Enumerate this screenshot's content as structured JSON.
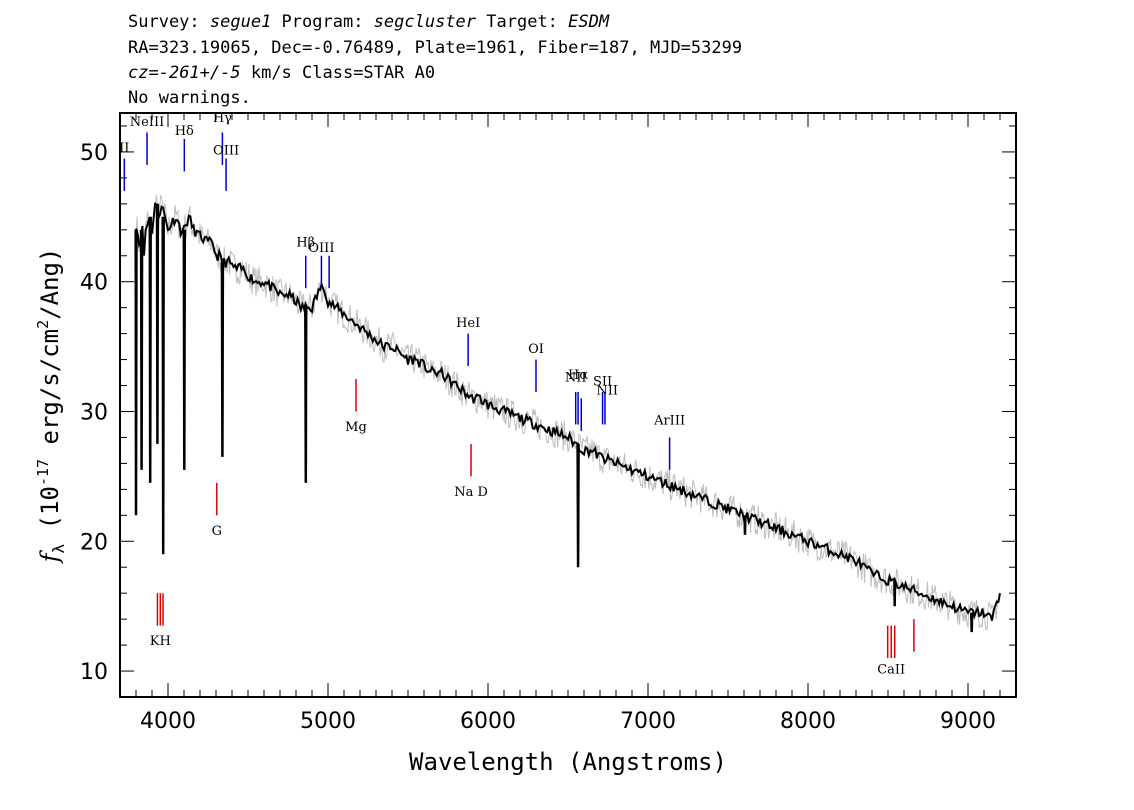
{
  "header": {
    "survey_label": "Survey: ",
    "survey": "segue1",
    "program_label": " Program: ",
    "program": "segcluster",
    "target_label": " Target: ",
    "target": "ESDM",
    "line2": "RA=323.19065, Dec=-0.76489, Plate=1961, Fiber=187, MJD=53299",
    "cz_prefix": "cz=",
    "cz_value": "-261+/-5",
    "cz_suffix": " km/s Class=STAR A0",
    "line4": "No warnings."
  },
  "chart_data": {
    "type": "line",
    "xlabel": "Wavelength (Angstroms)",
    "ylabel": "f_λ (10^-17 erg/s/cm^2/Ang)",
    "xlim": [
      3700,
      9300
    ],
    "ylim": [
      8,
      53
    ],
    "x_ticks": [
      4000,
      5000,
      6000,
      7000,
      8000,
      9000
    ],
    "y_ticks": [
      10,
      20,
      30,
      40,
      50
    ],
    "grid": false,
    "series": [
      {
        "role": "flux",
        "color": "#000000",
        "points": [
          [
            3800,
            44.5
          ],
          [
            3820,
            43
          ],
          [
            3840,
            44
          ],
          [
            3850,
            42
          ],
          [
            3860,
            44
          ],
          [
            3880,
            45
          ],
          [
            3900,
            44
          ],
          [
            3920,
            46
          ],
          [
            3940,
            45
          ],
          [
            3960,
            46
          ],
          [
            3980,
            45
          ],
          [
            4000,
            44
          ],
          [
            4020,
            44.5
          ],
          [
            4050,
            45
          ],
          [
            4080,
            44
          ],
          [
            4100,
            44
          ],
          [
            4130,
            45
          ],
          [
            4160,
            44
          ],
          [
            4200,
            43.5
          ],
          [
            4250,
            43
          ],
          [
            4280,
            43
          ],
          [
            4300,
            42
          ],
          [
            4320,
            42
          ],
          [
            4340,
            41.5
          ],
          [
            4380,
            41.5
          ],
          [
            4420,
            41
          ],
          [
            4460,
            41
          ],
          [
            4500,
            40.5
          ],
          [
            4550,
            40
          ],
          [
            4600,
            40
          ],
          [
            4650,
            39.5
          ],
          [
            4700,
            39
          ],
          [
            4750,
            39
          ],
          [
            4800,
            38.5
          ],
          [
            4830,
            38
          ],
          [
            4900,
            38
          ],
          [
            4950,
            39.5
          ],
          [
            4980,
            39.5
          ],
          [
            5000,
            38.5
          ],
          [
            5050,
            38
          ],
          [
            5100,
            37.5
          ],
          [
            5150,
            37
          ],
          [
            5200,
            36.5
          ],
          [
            5250,
            36
          ],
          [
            5300,
            35.5
          ],
          [
            5350,
            35
          ],
          [
            5400,
            35
          ],
          [
            5450,
            34.5
          ],
          [
            5500,
            34
          ],
          [
            5550,
            34
          ],
          [
            5600,
            33.5
          ],
          [
            5650,
            33
          ],
          [
            5700,
            33
          ],
          [
            5750,
            32.5
          ],
          [
            5800,
            32
          ],
          [
            5850,
            31.5
          ],
          [
            5900,
            31
          ],
          [
            5950,
            31
          ],
          [
            6000,
            30.5
          ],
          [
            6100,
            30
          ],
          [
            6200,
            29.5
          ],
          [
            6300,
            29
          ],
          [
            6400,
            28.5
          ],
          [
            6500,
            28
          ],
          [
            6550,
            27.5
          ],
          [
            6600,
            27
          ],
          [
            6650,
            27
          ],
          [
            6700,
            26.5
          ],
          [
            6800,
            26
          ],
          [
            6900,
            25.5
          ],
          [
            7000,
            25
          ],
          [
            7100,
            24.5
          ],
          [
            7200,
            24
          ],
          [
            7300,
            23.5
          ],
          [
            7400,
            23
          ],
          [
            7500,
            22.5
          ],
          [
            7600,
            22
          ],
          [
            7700,
            21.5
          ],
          [
            7800,
            21
          ],
          [
            7900,
            20.5
          ],
          [
            8000,
            20
          ],
          [
            8100,
            19.5
          ],
          [
            8200,
            19
          ],
          [
            8300,
            18.5
          ],
          [
            8400,
            17.5
          ],
          [
            8500,
            17
          ],
          [
            8600,
            16.5
          ],
          [
            8700,
            16
          ],
          [
            8800,
            15.5
          ],
          [
            8900,
            15
          ],
          [
            9000,
            14.5
          ],
          [
            9100,
            14.5
          ],
          [
            9150,
            14
          ],
          [
            9200,
            16
          ]
        ]
      },
      {
        "role": "absorption",
        "color": "#000000",
        "points": [
          [
            3798,
            44
          ],
          [
            3800,
            22
          ],
          [
            3803,
            44
          ],
          [
            3832,
            44
          ],
          [
            3835,
            25.5
          ],
          [
            3838,
            44
          ],
          [
            3886,
            45
          ],
          [
            3889,
            24.5
          ],
          [
            3892,
            45
          ],
          [
            3931,
            46
          ],
          [
            3934,
            27.5
          ],
          [
            3937,
            46
          ],
          [
            3967,
            45
          ],
          [
            3970,
            19
          ],
          [
            3973,
            45
          ],
          [
            4099,
            44
          ],
          [
            4102,
            25.5
          ],
          [
            4105,
            44
          ],
          [
            4337,
            41.5
          ],
          [
            4340,
            26.5
          ],
          [
            4343,
            41.5
          ],
          [
            4858,
            38
          ],
          [
            4861,
            24.5
          ],
          [
            4864,
            38
          ],
          [
            6560,
            27.5
          ],
          [
            6563,
            18
          ],
          [
            6566,
            27.5
          ],
          [
            7603,
            22
          ],
          [
            7606,
            20.5
          ],
          [
            7609,
            22
          ],
          [
            8540,
            17
          ],
          [
            8542,
            15
          ],
          [
            8544,
            17
          ],
          [
            9020,
            14.5
          ],
          [
            9023,
            13
          ],
          [
            9026,
            14.5
          ]
        ]
      }
    ],
    "emission_lines": [
      {
        "label": "ⅠⅠ",
        "wavelength": 3727,
        "y0": 47,
        "y1": 49.5,
        "label_y": 50
      },
      {
        "label": "NeIII",
        "wavelength": 3869,
        "y0": 49,
        "y1": 51.5,
        "label_y": 52
      },
      {
        "label": "Hδ",
        "wavelength": 4102,
        "y0": 48.5,
        "y1": 51,
        "label_y": 51.3
      },
      {
        "label": "Hγ",
        "wavelength": 4340,
        "y0": 49,
        "y1": 51.5,
        "label_y": 52.3
      },
      {
        "label": "OIII",
        "wavelength": 4363,
        "y0": 47,
        "y1": 49.5,
        "label_y": 49.8
      },
      {
        "label": "Hβ",
        "wavelength": 4861,
        "y0": 39.5,
        "y1": 42,
        "label_y": 42.7
      },
      {
        "label": "OIII",
        "wavelength": 4959,
        "y0": 39.5,
        "y1": 42,
        "label_y": 42.3
      },
      {
        "label": "",
        "wavelength": 5007,
        "y0": 39.5,
        "y1": 42,
        "label_y": 0
      },
      {
        "label": "HeI",
        "wavelength": 5876,
        "y0": 33.5,
        "y1": 36,
        "label_y": 36.5
      },
      {
        "label": "OI",
        "wavelength": 6300,
        "y0": 31.5,
        "y1": 34,
        "label_y": 34.5
      },
      {
        "label": "NII",
        "wavelength": 6548,
        "y0": 29,
        "y1": 31.5,
        "label_y": 32.3
      },
      {
        "label": "Hα",
        "wavelength": 6563,
        "y0": 29,
        "y1": 31.5,
        "label_y": 32.5
      },
      {
        "label": "",
        "wavelength": 6583,
        "y0": 28.5,
        "y1": 31,
        "label_y": 0
      },
      {
        "label": "SII",
        "wavelength": 6716,
        "y0": 29,
        "y1": 31.5,
        "label_y": 32
      },
      {
        "label": "",
        "wavelength": 6731,
        "y0": 29,
        "y1": 31.5,
        "label_y": 0
      },
      {
        "label": "NII",
        "wavelength": 6745,
        "y0": 0,
        "y1": 0,
        "label_y": 31.3
      },
      {
        "label": "ArIII",
        "wavelength": 7135,
        "y0": 25.5,
        "y1": 28,
        "label_y": 29
      }
    ],
    "absorption_lines": [
      {
        "label": "KH",
        "wavelength": 3952,
        "y0": 13.5,
        "y1": 16,
        "label_y": 12
      },
      {
        "label": "",
        "wavelength": 3934,
        "y0": 13.5,
        "y1": 16,
        "label_y": 0
      },
      {
        "label": "",
        "wavelength": 3969,
        "y0": 13.5,
        "y1": 16,
        "label_y": 0
      },
      {
        "label": "G",
        "wavelength": 4305,
        "y0": 22,
        "y1": 24.5,
        "label_y": 20.5
      },
      {
        "label": "Mg",
        "wavelength": 5175,
        "y0": 30,
        "y1": 32.5,
        "label_y": 28.5
      },
      {
        "label": "Na D",
        "wavelength": 5894,
        "y0": 25,
        "y1": 27.5,
        "label_y": 23.5
      },
      {
        "label": "CaII",
        "wavelength": 8520,
        "y0": 11,
        "y1": 13.5,
        "label_y": 9.8
      },
      {
        "label": "",
        "wavelength": 8498,
        "y0": 11,
        "y1": 13.5,
        "label_y": 0
      },
      {
        "label": "",
        "wavelength": 8542,
        "y0": 11,
        "y1": 13.5,
        "label_y": 0
      },
      {
        "label": "",
        "wavelength": 8662,
        "y0": 11.5,
        "y1": 14,
        "label_y": 0
      }
    ],
    "colors": {
      "spectrum": "#000000",
      "noise": "#bdbdbd",
      "emission": "#0000cc",
      "absorption": "#dd0000",
      "emission_faint": "#3333aa"
    }
  }
}
